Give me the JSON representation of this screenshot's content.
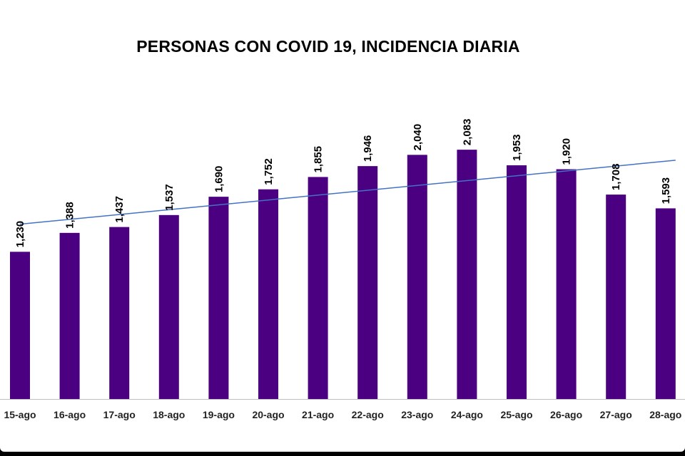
{
  "chart_data": {
    "type": "bar",
    "title": "PERSONAS CON COVID 19, INCIDENCIA DIARIA",
    "xlabel": "",
    "ylabel": "",
    "categories": [
      "15-ago",
      "16-ago",
      "17-ago",
      "18-ago",
      "19-ago",
      "20-ago",
      "21-ago",
      "22-ago",
      "23-ago",
      "24-ago",
      "25-ago",
      "26-ago",
      "27-ago",
      "28-ago"
    ],
    "values": [
      1230,
      1388,
      1437,
      1537,
      1690,
      1752,
      1855,
      1946,
      2040,
      2083,
      1953,
      1920,
      1708,
      1593
    ],
    "data_labels": [
      "1,230",
      "1,388",
      "1,437",
      "1,537",
      "1,690",
      "1,752",
      "1,855",
      "1,946",
      "2,040",
      "2,083",
      "1,953",
      "1,920",
      "1,708",
      "1,593"
    ],
    "ylim": [
      0,
      2560
    ],
    "grid": false,
    "legend": "none",
    "trendline": {
      "type": "linear",
      "color": "#4472c4"
    },
    "colors": {
      "bar": "#4b0082",
      "axis": "#bfbfbf"
    }
  }
}
